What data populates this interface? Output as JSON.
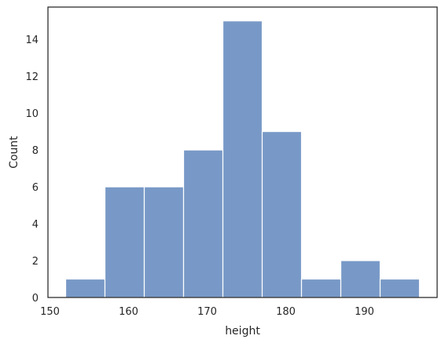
{
  "chart_data": {
    "type": "bar",
    "subtype": "histogram",
    "title": "",
    "xlabel": "height",
    "ylabel": "Count",
    "xlim": [
      149.75,
      199.25
    ],
    "ylim": [
      0,
      15.75
    ],
    "xticks": [
      150,
      160,
      170,
      180,
      190
    ],
    "yticks": [
      0,
      2,
      4,
      6,
      8,
      10,
      12,
      14
    ],
    "bins": [
      {
        "x0": 152,
        "x1": 157,
        "count": 1
      },
      {
        "x0": 157,
        "x1": 162,
        "count": 6
      },
      {
        "x0": 162,
        "x1": 167,
        "count": 6
      },
      {
        "x0": 167,
        "x1": 172,
        "count": 8
      },
      {
        "x0": 172,
        "x1": 177,
        "count": 15
      },
      {
        "x0": 177,
        "x1": 182,
        "count": 9
      },
      {
        "x0": 182,
        "x1": 187,
        "count": 1
      },
      {
        "x0": 187,
        "x1": 192,
        "count": 2
      },
      {
        "x0": 192,
        "x1": 197,
        "count": 1
      }
    ],
    "bar_color": "#7899c7",
    "bar_edge_color": "#ffffff",
    "grid": false,
    "legend": "none"
  }
}
